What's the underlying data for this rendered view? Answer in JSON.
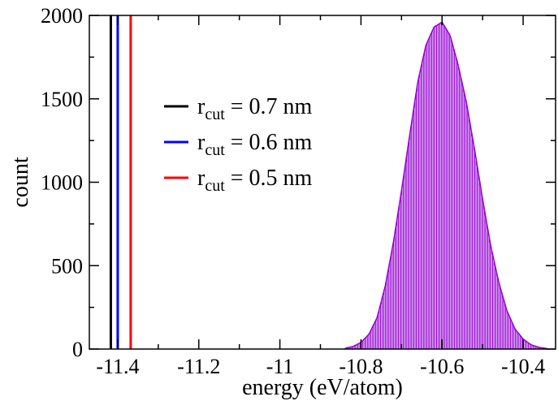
{
  "chart_data": {
    "type": "line",
    "xlabel": "energy (eV/atom)",
    "ylabel": "count",
    "xlim": [
      -11.47,
      -10.32
    ],
    "ylim": [
      0,
      2000
    ],
    "x_ticks": [
      -11.4,
      -11.2,
      -11.0,
      -10.8,
      -10.6,
      -10.4
    ],
    "x_tick_labels": [
      "-11.4",
      "-11.2",
      "-11",
      "-10.8",
      "-10.6",
      "-10.4"
    ],
    "y_ticks": [
      0,
      500,
      1000,
      1500,
      2000
    ],
    "y_tick_labels": [
      "0",
      "500",
      "1000",
      "1500",
      "2000"
    ],
    "legend_placement": "upper-left",
    "vlines": [
      {
        "x": -11.417,
        "color": "#000000",
        "label_main": "r",
        "label_sub": "cut",
        "label_rest": " = 0.7 nm"
      },
      {
        "x": -11.4,
        "color": "#0000ff",
        "label_main": "r",
        "label_sub": "cut",
        "label_rest": " = 0.6 nm"
      },
      {
        "x": -11.368,
        "color": "#ff0000",
        "label_main": "r",
        "label_sub": "cut",
        "label_rest": " = 0.5 nm"
      }
    ],
    "histogram": {
      "color": "#9400d3",
      "x": [
        -10.84,
        -10.82,
        -10.8,
        -10.78,
        -10.76,
        -10.74,
        -10.72,
        -10.7,
        -10.68,
        -10.66,
        -10.64,
        -10.62,
        -10.6,
        -10.58,
        -10.56,
        -10.54,
        -10.52,
        -10.5,
        -10.48,
        -10.46,
        -10.44,
        -10.42,
        -10.4,
        -10.38,
        -10.36,
        -10.34
      ],
      "counts": [
        5,
        15,
        40,
        90,
        190,
        380,
        640,
        950,
        1280,
        1600,
        1820,
        1930,
        1960,
        1880,
        1700,
        1480,
        1200,
        900,
        620,
        400,
        230,
        120,
        60,
        25,
        10,
        3
      ]
    }
  }
}
